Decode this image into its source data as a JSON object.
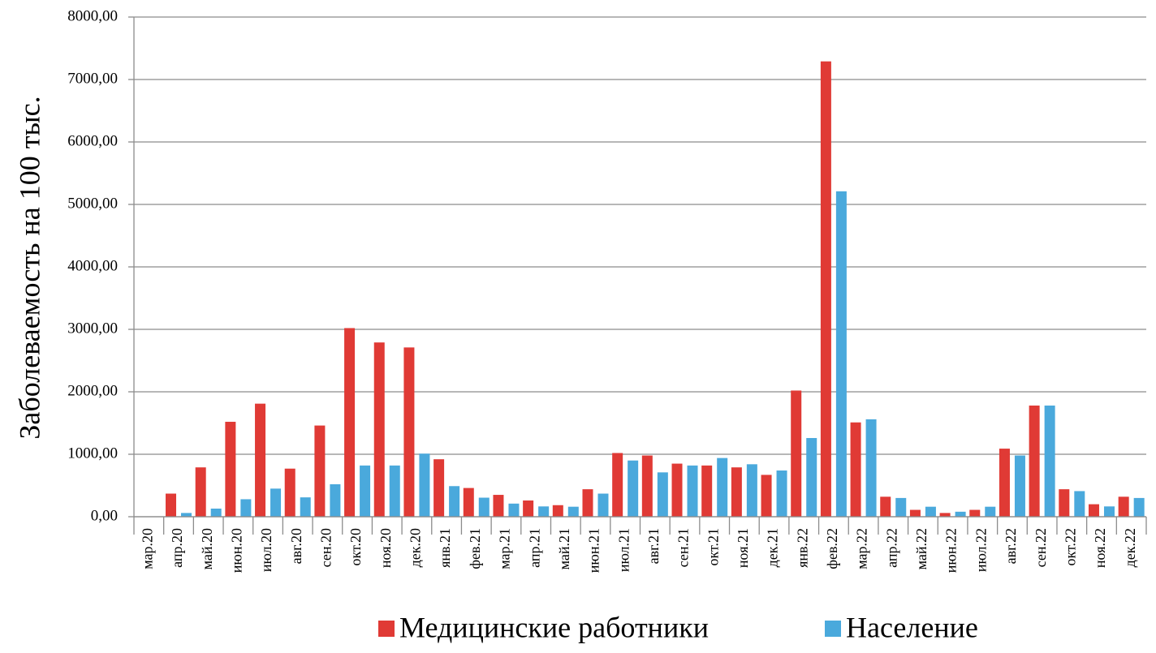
{
  "chart_data": {
    "type": "bar",
    "y_label": "Заболеваемость на 100 тыс.",
    "categories": [
      "мар.20",
      "апр.20",
      "май.20",
      "июн.20",
      "июл.20",
      "авг.20",
      "сен.20",
      "окт.20",
      "ноя.20",
      "дек.20",
      "янв.21",
      "фев.21",
      "мар.21",
      "апр.21",
      "май.21",
      "июн.21",
      "июл.21",
      "авг.21",
      "сен.21",
      "окт.21",
      "ноя.21",
      "дек.21",
      "янв.22",
      "фев.22",
      "мар.22",
      "апр.22",
      "май.22",
      "июн.22",
      "июл.22",
      "авг.22",
      "сен.22",
      "окт.22",
      "ноя.22",
      "дек.22"
    ],
    "series": [
      {
        "name": "Медицинские работники",
        "color": "#e03a35",
        "values": [
          0,
          370,
          790,
          1520,
          1810,
          770,
          1460,
          3020,
          2790,
          2710,
          920,
          460,
          350,
          260,
          185,
          440,
          1020,
          980,
          850,
          820,
          790,
          670,
          2020,
          7290,
          1510,
          320,
          110,
          60,
          110,
          1090,
          1780,
          440,
          200,
          320
        ]
      },
      {
        "name": "Население",
        "color": "#4aa9dc",
        "values": [
          0,
          60,
          130,
          280,
          450,
          310,
          520,
          820,
          820,
          1010,
          490,
          305,
          210,
          165,
          160,
          370,
          900,
          710,
          820,
          940,
          840,
          740,
          1260,
          5210,
          1560,
          300,
          160,
          80,
          160,
          980,
          1780,
          410,
          165,
          300
        ]
      }
    ],
    "ylim": [
      0,
      8000
    ],
    "yticks": [
      {
        "value": 0,
        "label": "0,00"
      },
      {
        "value": 1000,
        "label": "1000,00"
      },
      {
        "value": 2000,
        "label": "2000,00"
      },
      {
        "value": 3000,
        "label": "3000,00"
      },
      {
        "value": 4000,
        "label": "4000,00"
      },
      {
        "value": 5000,
        "label": "5000,00"
      },
      {
        "value": 6000,
        "label": "6000,00"
      },
      {
        "value": 7000,
        "label": "7000,00"
      },
      {
        "value": 8000,
        "label": "8000,00"
      }
    ],
    "grid": true
  }
}
